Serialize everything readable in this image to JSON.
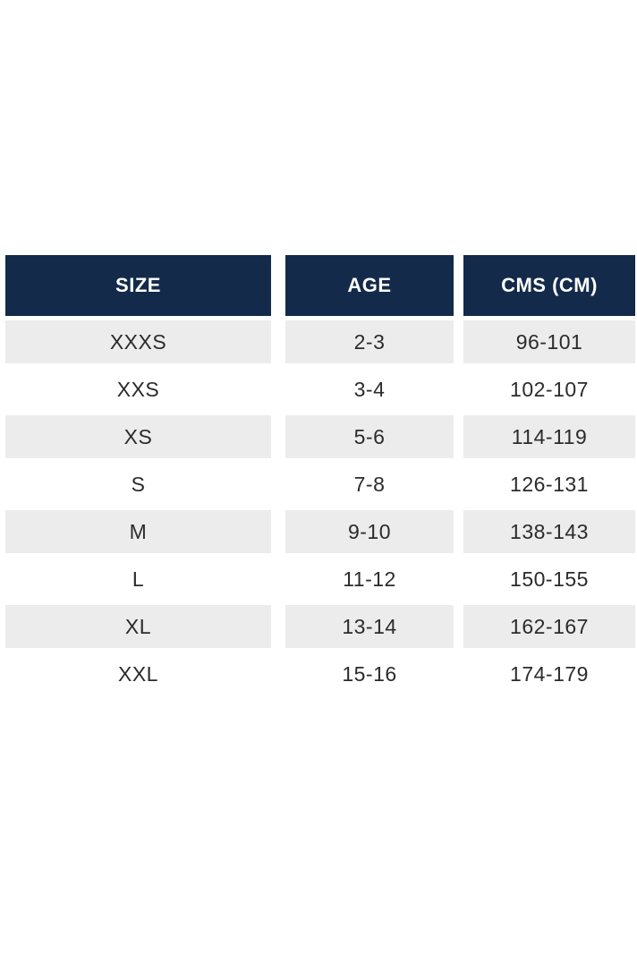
{
  "chart_data": {
    "type": "table",
    "title": "",
    "columns": [
      "SIZE",
      "AGE",
      "CMS (CM)"
    ],
    "rows": [
      [
        "XXXS",
        "2-3",
        "96-101"
      ],
      [
        "XXS",
        "3-4",
        "102-107"
      ],
      [
        "XS",
        "5-6",
        "114-119"
      ],
      [
        "S",
        "7-8",
        "126-131"
      ],
      [
        "M",
        "9-10",
        "138-143"
      ],
      [
        "L",
        "11-12",
        "150-155"
      ],
      [
        "XL",
        "13-14",
        "162-167"
      ],
      [
        "XXL",
        "15-16",
        "174-179"
      ]
    ]
  },
  "table": {
    "columns": [
      {
        "label": "SIZE"
      },
      {
        "label": "AGE"
      },
      {
        "label": "CMS (CM)"
      }
    ],
    "rows": [
      {
        "size": "XXXS",
        "age": "2-3",
        "cms": "96-101"
      },
      {
        "size": "XXS",
        "age": "3-4",
        "cms": "102-107"
      },
      {
        "size": "XS",
        "age": "5-6",
        "cms": "114-119"
      },
      {
        "size": "S",
        "age": "7-8",
        "cms": "126-131"
      },
      {
        "size": "M",
        "age": "9-10",
        "cms": "138-143"
      },
      {
        "size": "L",
        "age": "11-12",
        "cms": "150-155"
      },
      {
        "size": "XL",
        "age": "13-14",
        "cms": "162-167"
      },
      {
        "size": "XXL",
        "age": "15-16",
        "cms": "174-179"
      }
    ],
    "colors": {
      "header_bg": "#142A4A",
      "header_text": "#FFFFFF",
      "row_alt_bg": "#ECECEC",
      "row_text": "#2B2B2B",
      "page_bg": "#FFFFFF"
    }
  }
}
